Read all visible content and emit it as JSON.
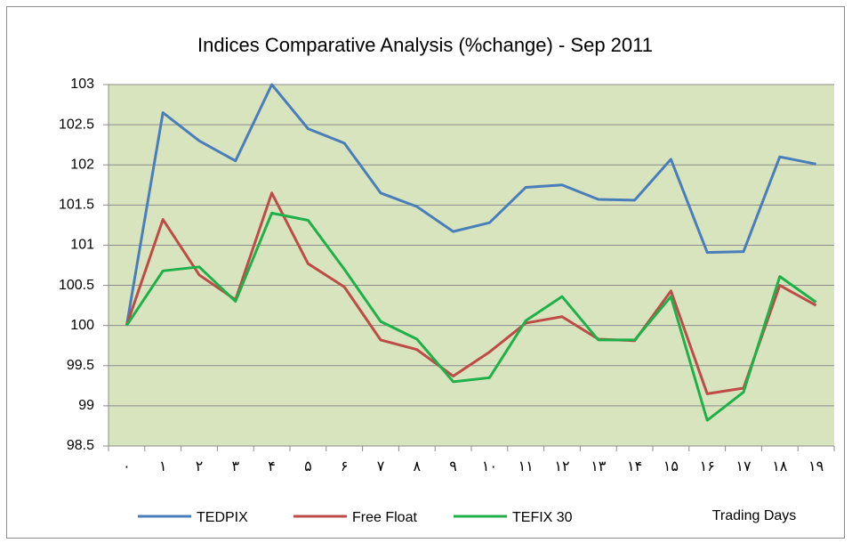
{
  "chart_data": {
    "type": "line",
    "title": "Indices Comparative Analysis (%change) - Sep 2011",
    "x_label": "Trading Days",
    "categories": [
      "۰",
      "۱",
      "۲",
      "۳",
      "۴",
      "۵",
      "۶",
      "۷",
      "۸",
      "۹",
      "۱۰",
      "۱۱",
      "۱۲",
      "۱۳",
      "۱۴",
      "۱۵",
      "۱۶",
      "۱۷",
      "۱۸",
      "۱۹"
    ],
    "series": [
      {
        "name": "TEDPIX",
        "color": "#4a7ebb",
        "values": [
          100,
          102.65,
          102.3,
          102.05,
          103,
          102.45,
          102.27,
          101.65,
          101.48,
          101.17,
          101.28,
          101.72,
          101.75,
          101.57,
          101.56,
          102.07,
          100.91,
          100.92,
          102.1,
          102.01
        ]
      },
      {
        "name": "Free Float",
        "color": "#be4b48",
        "values": [
          100,
          101.32,
          100.63,
          100.32,
          101.65,
          100.77,
          100.48,
          99.82,
          99.7,
          99.37,
          99.67,
          100.03,
          100.11,
          99.83,
          99.81,
          100.43,
          99.15,
          99.22,
          100.5,
          100.25
        ]
      },
      {
        "name": "TEFIX 30",
        "color": "#1fb04a",
        "values": [
          100,
          100.68,
          100.73,
          100.3,
          101.4,
          101.31,
          100.7,
          100.05,
          99.83,
          99.3,
          99.35,
          100.06,
          100.36,
          99.82,
          99.82,
          100.36,
          98.82,
          99.17,
          100.61,
          100.29
        ]
      }
    ],
    "ylim": [
      98.5,
      103
    ],
    "yticks": [
      98.5,
      99,
      99.5,
      100,
      100.5,
      101,
      101.5,
      102,
      102.5,
      103
    ],
    "grid": true,
    "legend": "bottom",
    "plot_background": "#d7e4bd"
  }
}
